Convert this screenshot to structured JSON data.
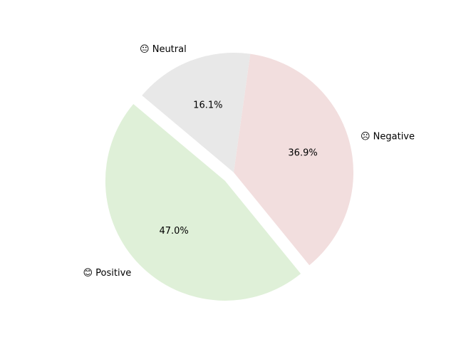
{
  "chart_data": {
    "type": "pie",
    "labels": [
      "😊 Positive",
      "☹ Negative",
      "😐 Neutral"
    ],
    "values": [
      47.0,
      36.9,
      16.1
    ],
    "value_labels": [
      "47.0%",
      "36.9%",
      "16.1%"
    ],
    "colors": [
      "#dff0d8",
      "#f2dede",
      "#e8e8e8"
    ],
    "exploded": [
      true,
      false,
      false
    ]
  }
}
